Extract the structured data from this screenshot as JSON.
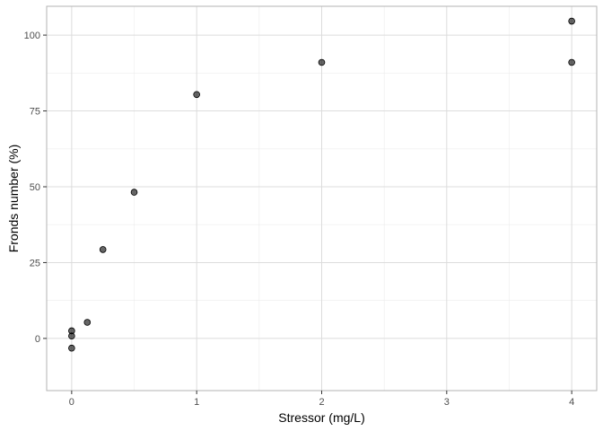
{
  "chart_data": {
    "type": "scatter",
    "title": "",
    "xlabel": "Stressor (mg/L)",
    "ylabel": "Fronds number (%)",
    "xlim": [
      -0.2,
      4.2
    ],
    "ylim": [
      -17.2,
      109.5
    ],
    "x_ticks": [
      0,
      1,
      2,
      3,
      4
    ],
    "y_ticks": [
      0,
      25,
      50,
      75,
      100
    ],
    "x_minor": [
      0.5,
      1.5,
      2.5,
      3.5
    ],
    "y_minor": [
      12.5,
      37.5,
      62.5,
      87.5
    ],
    "grid": true,
    "point_color": "#000000",
    "series": [
      {
        "points": [
          {
            "x": 0,
            "y": 2.5
          },
          {
            "x": 0,
            "y": 0.8
          },
          {
            "x": 0,
            "y": -3.2
          },
          {
            "x": 0.125,
            "y": 5.3
          },
          {
            "x": 0.25,
            "y": 29.3
          },
          {
            "x": 0.5,
            "y": 48.2
          },
          {
            "x": 1,
            "y": 80.4
          },
          {
            "x": 2,
            "y": 91.0
          },
          {
            "x": 4,
            "y": 104.6
          },
          {
            "x": 4,
            "y": 91.0
          }
        ]
      }
    ]
  }
}
